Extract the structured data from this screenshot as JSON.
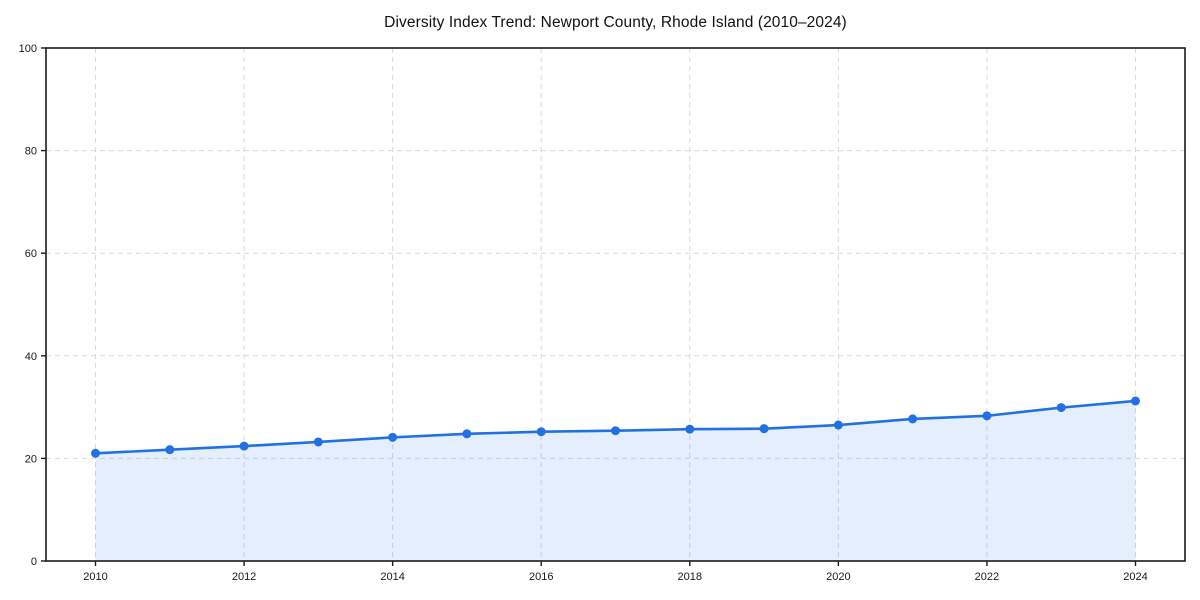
{
  "page": {
    "background_color": "#ffffff"
  },
  "chart_data": {
    "type": "area",
    "title": "Diversity Index Trend: Newport County, Rhode Island (2010–2024)",
    "series_name": "Diversity Index",
    "x": [
      2010,
      2011,
      2012,
      2013,
      2014,
      2015,
      2016,
      2017,
      2018,
      2019,
      2020,
      2021,
      2022,
      2023,
      2024
    ],
    "values": [
      21.0,
      21.7,
      22.4,
      23.2,
      24.1,
      24.8,
      25.2,
      25.4,
      25.7,
      25.8,
      26.5,
      27.7,
      28.3,
      29.9,
      31.2
    ],
    "xlabel": "",
    "ylabel": "",
    "ylim": [
      0,
      100
    ],
    "yticks": [
      0,
      20,
      40,
      60,
      80,
      100
    ],
    "xticks": [
      2010,
      2012,
      2014,
      2016,
      2018,
      2020,
      2022,
      2024
    ],
    "grid": true,
    "grid_style": "dashed",
    "legend": "none",
    "colors": {
      "line": "#2271e3",
      "marker": "#2271e3",
      "fill": "rgba(34,113,227,0.12)",
      "grid": "#d9d9d9",
      "spine": "#1a1a1a",
      "tick_text": "#1a1a1a"
    }
  }
}
